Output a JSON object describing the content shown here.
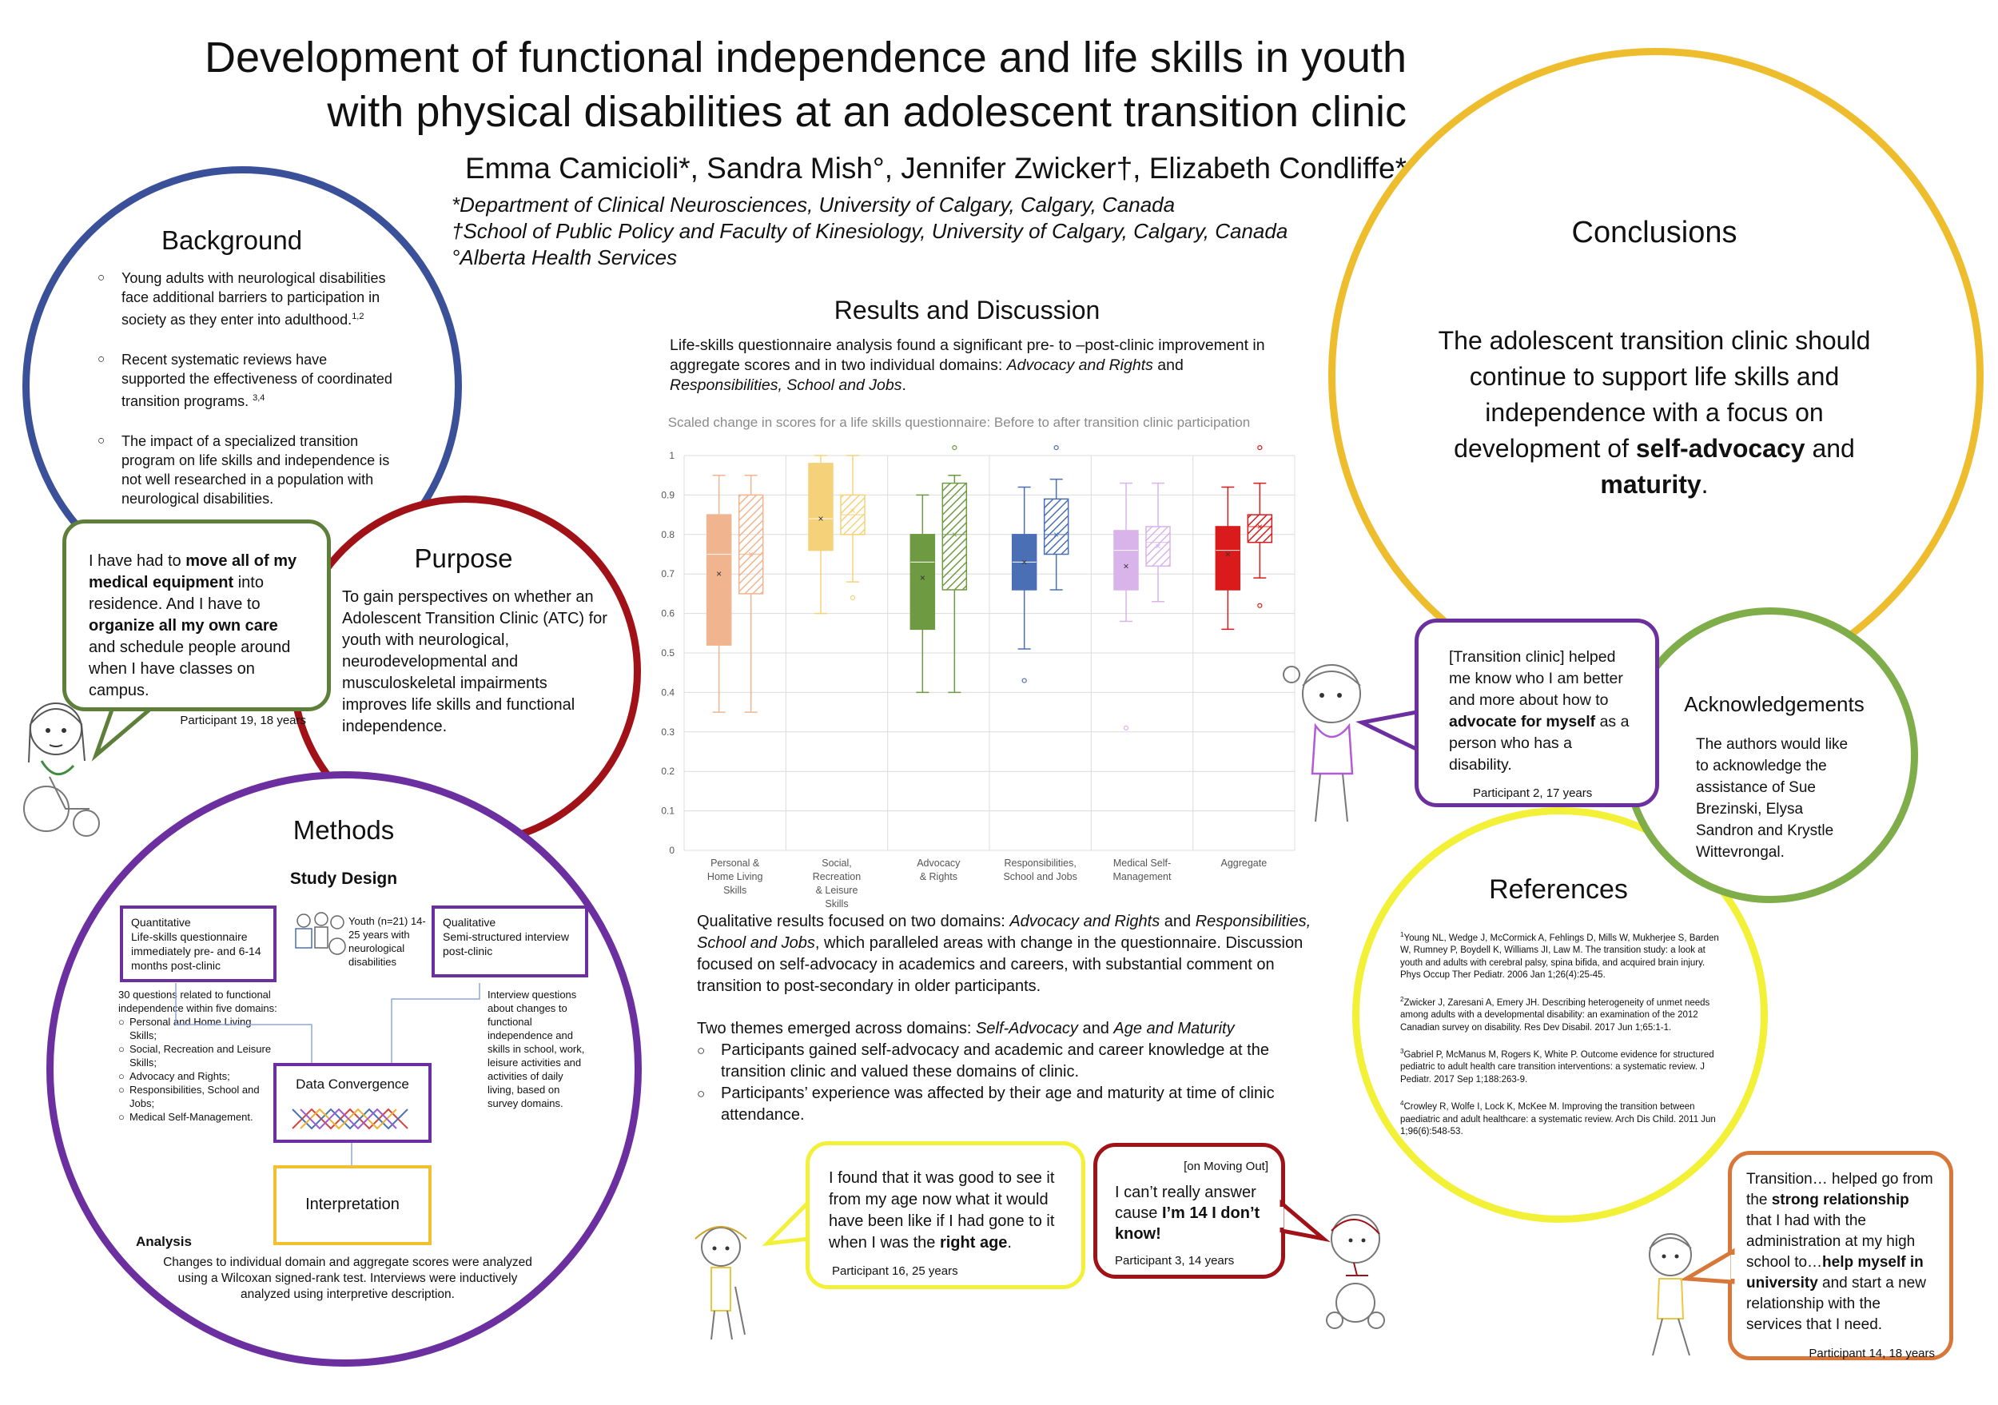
{
  "title": {
    "line1": "Development of functional independence and life skills in youth",
    "line2": "with physical disabilities at an adolescent transition clinic"
  },
  "authors": "Emma Camicioli*, Sandra Mish°, Jennifer Zwicker†, Elizabeth Condliffe*",
  "affiliations": [
    "*Department of Clinical Neurosciences, University of Calgary, Calgary, Canada",
    "†School of Public Policy and Faculty of Kinesiology, University of Calgary, Calgary, Canada",
    "°Alberta Health Services"
  ],
  "background": {
    "heading": "Background",
    "items": [
      {
        "text": "Young adults with neurological disabilities face additional barriers to participation in society as they enter into adulthood.",
        "sup": "1,2"
      },
      {
        "text": "Recent systematic reviews have supported the effectiveness of coordinated transition programs. ",
        "sup": "3,4"
      },
      {
        "text": "The impact of a specialized transition program on life skills and independence is not well researched in a population with neurological disabilities.",
        "sup": ""
      }
    ]
  },
  "quote_p19": {
    "pre1": "I have had to ",
    "b1": "move all of my medical equipment",
    "mid": " into residence. And I have to ",
    "b2": "organize all my own care",
    "post": " and schedule people around when I have classes on campus.",
    "who": "Participant 19, 18 years"
  },
  "purpose": {
    "heading": "Purpose",
    "text": "To gain perspectives on whether an Adolescent Transition Clinic (ATC) for youth with neurological, neurodevelopmental and musculoskeletal impairments improves life skills and functional independence."
  },
  "methods": {
    "heading": "Methods",
    "study_design": "Study Design",
    "quant_title": "Quantitative",
    "quant_text": "Life-skills questionnaire immediately pre- and 6-14 months post-clinic",
    "youth_text": "Youth (n=21) 14-25 years with neurological disabilities",
    "qual_title": "Qualitative",
    "qual_text": "Semi-structured interview post-clinic",
    "quant_detail": "30 questions related to functional independence within five domains:",
    "domains": [
      "Personal and Home Living Skills;",
      "Social, Recreation and Leisure Skills;",
      "Advocacy and Rights;",
      "Responsibilities, School and Jobs;",
      "Medical Self-Management."
    ],
    "qual_detail": "Interview questions about changes to functional independence and skills in school, work, leisure activities and activities of daily living, based on survey domains.",
    "convergence": "Data Convergence",
    "interpretation": "Interpretation",
    "analysis_heading": "Analysis",
    "analysis_text": "Changes to individual domain and aggregate scores were analyzed using a Wilcoxan signed-rank test. Interviews were inductively analyzed using interpretive description."
  },
  "results": {
    "heading": "Results and Discussion",
    "intro_a": "Life-skills questionnaire analysis found a significant pre- to –post-clinic improvement in aggregate scores and in two individual domains: ",
    "intro_i1": "Advocacy and Rights",
    "intro_b": " and ",
    "intro_i2": "Responsibilities, School and Jobs",
    "intro_c": ".",
    "qual_a": "Qualitative results focused on two domains: ",
    "qual_i1": "Advocacy and Rights",
    "qual_b": " and ",
    "qual_i2": "Responsibilities, School and Jobs",
    "qual_c": ", which paralleled areas with change in the questionnaire. Discussion focused on self-advocacy in academics and careers, with substantial comment on transition to post-secondary in older participants.",
    "themes_a": "Two themes emerged across domains: ",
    "themes_i1": "Self-Advocacy",
    "themes_b": " and ",
    "themes_i2": "Age and Maturity",
    "bullets": [
      "Participants gained self-advocacy and academic and career knowledge at the transition clinic and valued these domains of clinic.",
      "Participants’ experience was affected by their age and maturity at time of clinic attendance."
    ]
  },
  "chart_data": {
    "type": "box",
    "title": "Scaled change in scores for a life skills questionnaire: Before to after transition clinic participation",
    "ylim": [
      0,
      1
    ],
    "yticks": [
      "0",
      "0.1",
      "0.2",
      "0.3",
      "0.4",
      "0.5",
      "0.6",
      "0.7",
      "0.8",
      "0.9",
      "1"
    ],
    "grid": true,
    "categories": [
      {
        "label": [
          "Personal &",
          "Home Living",
          "Skills"
        ],
        "color": "#f0b48e",
        "pre": {
          "min": 0.35,
          "q1": 0.52,
          "median": 0.75,
          "q3": 0.85,
          "max": 0.95,
          "mean": 0.7,
          "outliers": []
        },
        "post": {
          "min": 0.35,
          "q1": 0.65,
          "median": 0.75,
          "q3": 0.9,
          "max": 0.95,
          "mean": 0.75,
          "outliers": []
        }
      },
      {
        "label": [
          "Social,",
          "Recreation",
          "& Leisure",
          "Skills"
        ],
        "color": "#f5d27a",
        "pre": {
          "min": 0.6,
          "q1": 0.76,
          "median": 0.84,
          "q3": 0.98,
          "max": 1.0,
          "mean": 0.84,
          "outliers": []
        },
        "post": {
          "min": 0.68,
          "q1": 0.8,
          "median": 0.85,
          "q3": 0.9,
          "max": 1.0,
          "mean": 0.86,
          "outliers": [
            0.64
          ]
        }
      },
      {
        "label": [
          "Advocacy",
          "& Rights"
        ],
        "color": "#6e9a42",
        "pre": {
          "min": 0.4,
          "q1": 0.56,
          "median": 0.73,
          "q3": 0.8,
          "max": 0.9,
          "mean": 0.69,
          "outliers": []
        },
        "post": {
          "min": 0.4,
          "q1": 0.66,
          "median": 0.8,
          "q3": 0.93,
          "max": 0.95,
          "mean": 0.8,
          "outliers": [
            1.02
          ]
        }
      },
      {
        "label": [
          "Responsibilities,",
          "School and Jobs"
        ],
        "color": "#4a6fb5",
        "pre": {
          "min": 0.51,
          "q1": 0.66,
          "median": 0.73,
          "q3": 0.8,
          "max": 0.92,
          "mean": 0.73,
          "outliers": [
            0.43
          ]
        },
        "post": {
          "min": 0.66,
          "q1": 0.75,
          "median": 0.8,
          "q3": 0.89,
          "max": 0.94,
          "mean": 0.8,
          "outliers": [
            1.02
          ]
        }
      },
      {
        "label": [
          "Medical Self-",
          "Management"
        ],
        "color": "#d8b4ea",
        "pre": {
          "min": 0.58,
          "q1": 0.66,
          "median": 0.76,
          "q3": 0.81,
          "max": 0.93,
          "mean": 0.72,
          "outliers": [
            0.31
          ]
        },
        "post": {
          "min": 0.63,
          "q1": 0.72,
          "median": 0.78,
          "q3": 0.82,
          "max": 0.93,
          "mean": 0.77,
          "outliers": []
        }
      },
      {
        "label": [
          "Aggregate"
        ],
        "color": "#d91b1b",
        "pre": {
          "min": 0.56,
          "q1": 0.66,
          "median": 0.76,
          "q3": 0.82,
          "max": 0.92,
          "mean": 0.75,
          "outliers": []
        },
        "post": {
          "min": 0.69,
          "q1": 0.78,
          "median": 0.82,
          "q3": 0.85,
          "max": 0.93,
          "mean": 0.82,
          "outliers": [
            1.02,
            0.62
          ]
        }
      }
    ]
  },
  "conclusions": {
    "heading": "Conclusions",
    "text_a": "The adolescent transition clinic should continue to support life skills and independence with a focus on development of ",
    "b1": "self-advocacy",
    "text_b": " and ",
    "b2": "maturity",
    "text_c": "."
  },
  "quote_p2": {
    "pre": "[Transition clinic] helped me know who I am better and more about how to ",
    "b": "advocate for myself",
    "post": " as a person who has a disability.",
    "who": "Participant 2, 17 years"
  },
  "acknowledgements": {
    "heading": "Acknowledgements",
    "text": "The authors would like to acknowledge the assistance of Sue Brezinski, Elysa Sandron and Krystle Wittevrongal."
  },
  "references": {
    "heading": "References",
    "items": [
      {
        "sup": "1",
        "text": "Young NL, Wedge J, McCormick A, Fehlings D, Mills W, Mukherjee S, Barden W, Rumney P, Boydell K, Williams JI, Law M. The transition study: a look at youth and adults with cerebral palsy, spina bifida, and acquired brain injury. Phys Occup Ther Pediatr. 2006 Jan 1;26(4):25-45."
      },
      {
        "sup": "2",
        "text": "Zwicker J, Zaresani A, Emery JH. Describing heterogeneity of unmet needs among adults with a developmental disability: an examination of the 2012 Canadian survey on disability. Res Dev Disabil. 2017 Jun 1;65:1-1."
      },
      {
        "sup": "3",
        "text": "Gabriel P, McManus M, Rogers K, White P. Outcome evidence for structured pediatric to adult health care transition interventions: a systematic review. J Pediatr. 2017 Sep 1;188:263-9."
      },
      {
        "sup": "4",
        "text": "Crowley R, Wolfe I, Lock K, McKee M. Improving the transition between paediatric and adult healthcare: a systematic review. Arch Dis Child. 2011 Jun 1;96(6):548-53."
      }
    ]
  },
  "quote_p16": {
    "pre": "I found that it was good to see it from my age now what it would have been like if I had gone to it when I was the ",
    "b": "right age",
    "post": ".",
    "who": "Participant 16, 25 years"
  },
  "quote_p3": {
    "tag": "[on Moving Out]",
    "pre": "I can’t really answer cause ",
    "b": "I’m 14 I don’t know!",
    "who": "Participant 3, 14 years"
  },
  "quote_p14": {
    "pre": "Transition… helped go from the ",
    "b1": "strong relationship",
    "mid": " that I had with the administration at my high school to…",
    "b2": "help myself in university",
    "post": " and start a new relationship with the services that I need.",
    "who": "Participant 14, 18 years"
  },
  "colors": {
    "background_circle": "#3a5199",
    "purpose_circle": "#a01218",
    "methods_circle": "#6b2fa0",
    "conclusions_circle": "#eebd2e",
    "ack_circle": "#7fad4a",
    "references_circle": "#f3f038",
    "quote_p19_border": "#5e7f3a",
    "quote_p2_border": "#6b2fa0",
    "quote_p16_border": "#f3f038",
    "quote_p3_border": "#a01218",
    "quote_p14_border": "#d8773a",
    "interpretation_border": "#f0c030"
  }
}
